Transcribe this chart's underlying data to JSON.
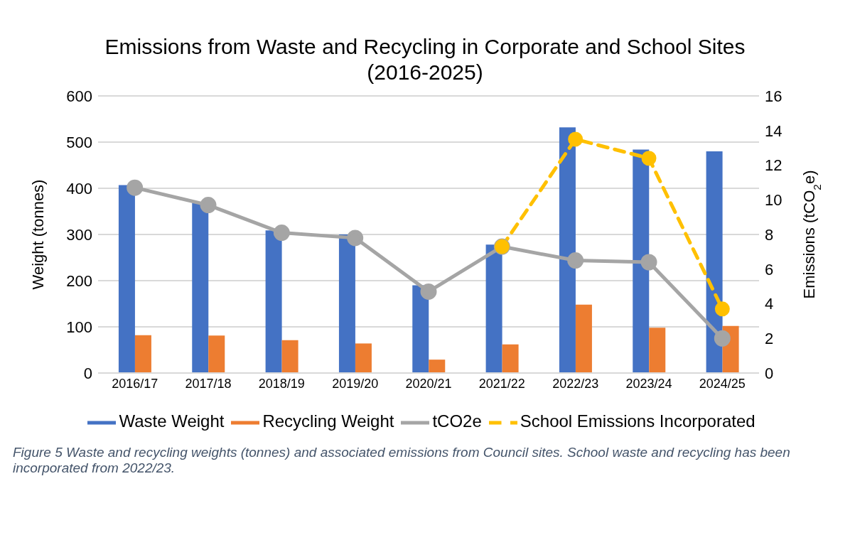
{
  "chart_data": {
    "type": "bar",
    "title": "Emissions from Waste and Recycling in Corporate and School Sites (2016-2025)",
    "categories": [
      "2016/17",
      "2017/18",
      "2018/19",
      "2019/20",
      "2020/21",
      "2021/22",
      "2022/23",
      "2023/24",
      "2024/25"
    ],
    "series": [
      {
        "name": "Waste Weight",
        "color": "#4472c4",
        "values": [
          407,
          368,
          309,
          300,
          190,
          278,
          532,
          484,
          480
        ]
      },
      {
        "name": "Recycling Weight",
        "color": "#ed7d31",
        "values": [
          82,
          81,
          71,
          64,
          29,
          62,
          148,
          98,
          102
        ]
      },
      {
        "name": "tCO2e",
        "type": "line",
        "axis": "y2",
        "color": "#a5a5a5",
        "marker": "circle",
        "line_style": "solid",
        "values": [
          10.7,
          9.7,
          8.1,
          7.8,
          4.7,
          7.3,
          6.5,
          6.4,
          2.0
        ]
      },
      {
        "name": "School Emissions Incorporated",
        "type": "line",
        "axis": "y2",
        "color": "#ffc000",
        "marker": "circle",
        "line_style": "dashed",
        "values": [
          null,
          null,
          null,
          null,
          null,
          7.3,
          13.5,
          12.4,
          3.7
        ]
      }
    ],
    "ylabel": "Weight (tonnes)",
    "y2label": "Emissions (tCO$_{2}$e)",
    "ylim": [
      0,
      600
    ],
    "yticks": [
      0,
      100,
      200,
      300,
      400,
      500,
      600
    ],
    "y2lim": [
      0,
      16
    ],
    "y2ticks": [
      0,
      2,
      4,
      6,
      8,
      10,
      12,
      14,
      16
    ],
    "grid": "y",
    "legend": "bottom",
    "annotations": [
      "Figure 5 Waste and recycling weights (tonnes) and associated emissions from Council sites. School waste and recycling has been incorporated from 2022/23."
    ]
  }
}
